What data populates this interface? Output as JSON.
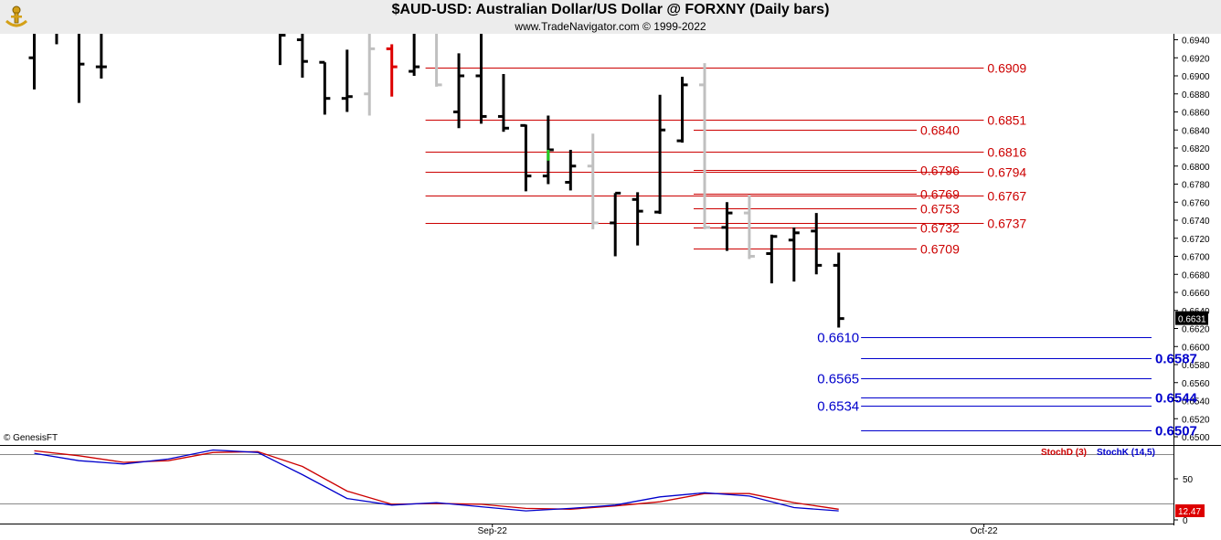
{
  "header": {
    "title": "$AUD-USD:  Australian Dollar/US Dollar @ FORXNY  (Daily bars)",
    "subtitle": "www.TradeNavigator.com © 1999-2022",
    "credit": "© GenesisFT"
  },
  "colors": {
    "bar_up": "#000000",
    "bar_gray": "#c0c0c0",
    "bar_red": "#dd0000",
    "bar_green": "#22cc22",
    "resistance": "#cc0000",
    "support": "#0000cc",
    "stoch_d": "#cc0000",
    "stoch_k": "#0000cc"
  },
  "chart_data": [
    {
      "type": "ohlc",
      "name": "price",
      "ylim": [
        0.649,
        0.6955
      ],
      "y_ticks": [
        "0.6940",
        "0.6920",
        "0.6900",
        "0.6880",
        "0.6860",
        "0.6840",
        "0.6820",
        "0.6800",
        "0.6780",
        "0.6760",
        "0.6740",
        "0.6720",
        "0.6700",
        "0.6680",
        "0.6660",
        "0.6640",
        "0.6620",
        "0.6600",
        "0.6580",
        "0.6560",
        "0.6540",
        "0.6520",
        "0.6500"
      ],
      "x_labels": [
        {
          "label": "Sep-22",
          "index": 20.5
        },
        {
          "label": "Oct-22",
          "index": 42.5
        }
      ],
      "last_price_label": "0.6631",
      "bars": [
        {
          "i": 0,
          "o": 0.692,
          "h": 0.696,
          "l": 0.6885,
          "c": 0.696,
          "col": "k"
        },
        {
          "i": 1,
          "o": 0.696,
          "h": 0.696,
          "l": 0.6935,
          "c": 0.696,
          "col": "k"
        },
        {
          "i": 2,
          "o": 0.696,
          "h": 0.696,
          "l": 0.687,
          "c": 0.6913,
          "col": "k"
        },
        {
          "i": 3,
          "o": 0.691,
          "h": 0.696,
          "l": 0.6897,
          "c": 0.691,
          "col": "k"
        },
        {
          "i": 11,
          "o": 0.695,
          "h": 0.696,
          "l": 0.6912,
          "c": 0.6945,
          "col": "k"
        },
        {
          "i": 12,
          "o": 0.694,
          "h": 0.696,
          "l": 0.6898,
          "c": 0.6916,
          "col": "k"
        },
        {
          "i": 13,
          "o": 0.6915,
          "h": 0.6915,
          "l": 0.6857,
          "c": 0.6875,
          "col": "k"
        },
        {
          "i": 14,
          "o": 0.6875,
          "h": 0.6929,
          "l": 0.686,
          "c": 0.6877,
          "col": "k"
        },
        {
          "i": 15,
          "o": 0.688,
          "h": 0.6958,
          "l": 0.6856,
          "c": 0.693,
          "col": "g"
        },
        {
          "i": 16,
          "o": 0.693,
          "h": 0.6935,
          "l": 0.6877,
          "c": 0.691,
          "col": "r"
        },
        {
          "i": 17,
          "o": 0.6905,
          "h": 0.696,
          "l": 0.69,
          "c": 0.691,
          "col": "k"
        },
        {
          "i": 18,
          "o": 0.696,
          "h": 0.696,
          "l": 0.6888,
          "c": 0.689,
          "col": "g"
        },
        {
          "i": 19,
          "o": 0.686,
          "h": 0.6925,
          "l": 0.6842,
          "c": 0.69,
          "col": "k"
        },
        {
          "i": 20,
          "o": 0.69,
          "h": 0.6958,
          "l": 0.6847,
          "c": 0.6855,
          "col": "k"
        },
        {
          "i": 21,
          "o": 0.6855,
          "h": 0.6902,
          "l": 0.6838,
          "c": 0.6842,
          "col": "k"
        },
        {
          "i": 22,
          "o": 0.6845,
          "h": 0.6846,
          "l": 0.6772,
          "c": 0.6789,
          "col": "k"
        },
        {
          "i": 23,
          "o": 0.6789,
          "h": 0.6856,
          "l": 0.678,
          "c": 0.6818,
          "col": "k"
        },
        {
          "i": 24,
          "o": 0.6782,
          "h": 0.6818,
          "l": 0.6773,
          "c": 0.68,
          "col": "k"
        },
        {
          "i": 25,
          "o": 0.68,
          "h": 0.6836,
          "l": 0.673,
          "c": 0.6737,
          "col": "g"
        },
        {
          "i": 26,
          "o": 0.6737,
          "h": 0.677,
          "l": 0.67,
          "c": 0.677,
          "col": "k"
        },
        {
          "i": 27,
          "o": 0.6763,
          "h": 0.6771,
          "l": 0.6712,
          "c": 0.675,
          "col": "k"
        },
        {
          "i": 28,
          "o": 0.6749,
          "h": 0.6879,
          "l": 0.6747,
          "c": 0.684,
          "col": "k"
        },
        {
          "i": 29,
          "o": 0.6828,
          "h": 0.6899,
          "l": 0.6826,
          "c": 0.689,
          "col": "k"
        },
        {
          "i": 30,
          "o": 0.689,
          "h": 0.6914,
          "l": 0.673,
          "c": 0.6732,
          "col": "g"
        },
        {
          "i": 31,
          "o": 0.6732,
          "h": 0.676,
          "l": 0.6706,
          "c": 0.6748,
          "col": "k"
        },
        {
          "i": 32,
          "o": 0.6748,
          "h": 0.6768,
          "l": 0.6697,
          "c": 0.67,
          "col": "g"
        },
        {
          "i": 33,
          "o": 0.6703,
          "h": 0.6724,
          "l": 0.667,
          "c": 0.6722,
          "col": "k"
        },
        {
          "i": 34,
          "o": 0.6718,
          "h": 0.6732,
          "l": 0.6672,
          "c": 0.6726,
          "col": "k"
        },
        {
          "i": 35,
          "o": 0.6728,
          "h": 0.6748,
          "l": 0.668,
          "c": 0.669,
          "col": "k"
        },
        {
          "i": 36,
          "o": 0.669,
          "h": 0.6704,
          "l": 0.6621,
          "c": 0.6631,
          "col": "k"
        }
      ],
      "resistance": [
        {
          "price": 0.6909,
          "label": "0.6909",
          "from": 18,
          "to": 42,
          "label_side": "right"
        },
        {
          "price": 0.6851,
          "label": "0.6851",
          "from": 18,
          "to": 42,
          "label_side": "right"
        },
        {
          "price": 0.684,
          "label": "0.6840",
          "from": 30,
          "to": 39,
          "label_side": "right"
        },
        {
          "price": 0.6816,
          "label": "0.6816",
          "from": 18,
          "to": 42,
          "label_side": "right"
        },
        {
          "price": 0.6796,
          "label": "0.6796",
          "from": 30,
          "to": 39,
          "label_side": "right"
        },
        {
          "price": 0.6794,
          "label": "0.6794",
          "from": 18,
          "to": 42,
          "label_side": "right"
        },
        {
          "price": 0.6769,
          "label": "0.6769",
          "from": 30,
          "to": 39,
          "label_side": "right"
        },
        {
          "price": 0.6767,
          "label": "0.6767",
          "from": 18,
          "to": 42,
          "label_side": "right"
        },
        {
          "price": 0.6753,
          "label": "0.6753",
          "from": 30,
          "to": 39,
          "label_side": "right"
        },
        {
          "price": 0.6737,
          "label": "0.6737",
          "from": 18,
          "to": 42,
          "label_side": "right"
        },
        {
          "price": 0.6732,
          "label": "0.6732",
          "from": 30,
          "to": 39,
          "label_side": "right"
        },
        {
          "price": 0.6709,
          "label": "0.6709",
          "from": 30,
          "to": 39,
          "label_side": "right"
        }
      ],
      "support": [
        {
          "price": 0.661,
          "label": "0.6610",
          "from": 37,
          "to": 50,
          "label_side": "left",
          "bold": false
        },
        {
          "price": 0.6587,
          "label": "0.6587",
          "from": 37,
          "to": 50,
          "label_side": "right",
          "bold": true
        },
        {
          "price": 0.6565,
          "label": "0.6565",
          "from": 37,
          "to": 50,
          "label_side": "left",
          "bold": false
        },
        {
          "price": 0.6544,
          "label": "0.6544",
          "from": 37,
          "to": 50,
          "label_side": "right",
          "bold": true
        },
        {
          "price": 0.6534,
          "label": "0.6534",
          "from": 37,
          "to": 50,
          "label_side": "left",
          "bold": false
        },
        {
          "price": 0.6507,
          "label": "0.6507",
          "from": 37,
          "to": 50,
          "label_side": "right",
          "bold": true
        }
      ]
    },
    {
      "type": "line",
      "name": "stochastic",
      "ylim": [
        0,
        100
      ],
      "y_ticks": [
        "50",
        "0"
      ],
      "ref_lines": [
        80,
        20
      ],
      "legend": [
        "StochD (3)",
        "StochK (14,5)"
      ],
      "last_value_label": "12.47",
      "series": [
        {
          "name": "StochD (3)",
          "color": "#cc0000",
          "x": [
            0,
            2,
            4,
            6,
            8,
            10,
            12,
            14,
            16,
            18,
            20,
            22,
            24,
            26,
            28,
            30,
            32,
            34,
            36
          ],
          "values": [
            84,
            78,
            70,
            72,
            82,
            83,
            65,
            35,
            19,
            20,
            19,
            14,
            13,
            17,
            22,
            32,
            32,
            21,
            13
          ]
        },
        {
          "name": "StochK (14,5)",
          "color": "#0000cc",
          "x": [
            0,
            2,
            4,
            6,
            8,
            10,
            12,
            14,
            16,
            18,
            20,
            22,
            24,
            26,
            28,
            30,
            32,
            34,
            36
          ],
          "values": [
            81,
            72,
            68,
            74,
            85,
            82,
            55,
            26,
            18,
            21,
            16,
            11,
            14,
            18,
            28,
            33,
            29,
            15,
            11
          ]
        }
      ]
    }
  ]
}
